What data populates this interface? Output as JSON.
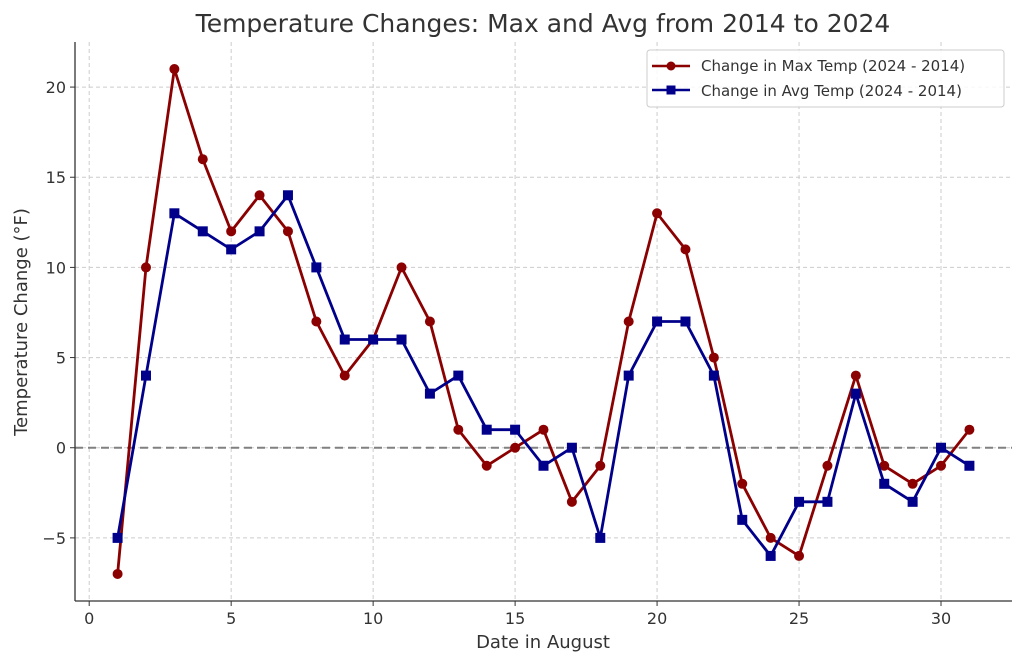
{
  "chart_data": {
    "type": "line",
    "title": "Temperature Changes: Max and Avg from 2014 to 2024",
    "xlabel": "Date in August",
    "ylabel": "Temperature Change (°F)",
    "xlim": [
      -0.5,
      32.5
    ],
    "ylim": [
      -8.5,
      22.5
    ],
    "xticks": [
      0,
      5,
      10,
      15,
      20,
      25,
      30
    ],
    "yticks": [
      -5,
      0,
      5,
      10,
      15,
      20
    ],
    "xtick_labels": [
      "0",
      "5",
      "10",
      "15",
      "20",
      "25",
      "30"
    ],
    "ytick_labels": [
      "−5",
      "0",
      "5",
      "10",
      "15",
      "20"
    ],
    "grid": true,
    "reference_line": {
      "y": 0,
      "style": "dashed",
      "color": "#808080"
    },
    "legend_position": "top-right",
    "x": [
      1,
      2,
      3,
      4,
      5,
      6,
      7,
      8,
      9,
      10,
      11,
      12,
      13,
      14,
      15,
      16,
      17,
      18,
      19,
      20,
      21,
      22,
      23,
      24,
      25,
      26,
      27,
      28,
      29,
      30,
      31
    ],
    "series": [
      {
        "name": "Change in Max Temp (2024 - 2014)",
        "color": "#8b0000",
        "marker": "circle",
        "values": [
          -7,
          10,
          21,
          16,
          12,
          14,
          12,
          7,
          4,
          6,
          10,
          7,
          1,
          -1,
          0,
          1,
          -3,
          -1,
          7,
          13,
          11,
          5,
          -2,
          -5,
          -6,
          -1,
          4,
          -1,
          -2,
          -1,
          1
        ]
      },
      {
        "name": "Change in Avg Temp (2024 - 2014)",
        "color": "#00008b",
        "marker": "square",
        "values": [
          -5,
          4,
          13,
          12,
          11,
          12,
          14,
          10,
          6,
          6,
          6,
          3,
          4,
          1,
          1,
          -1,
          0,
          -5,
          4,
          7,
          7,
          4,
          -4,
          -6,
          -3,
          -3,
          3,
          -2,
          -3,
          0,
          -1
        ]
      }
    ]
  }
}
